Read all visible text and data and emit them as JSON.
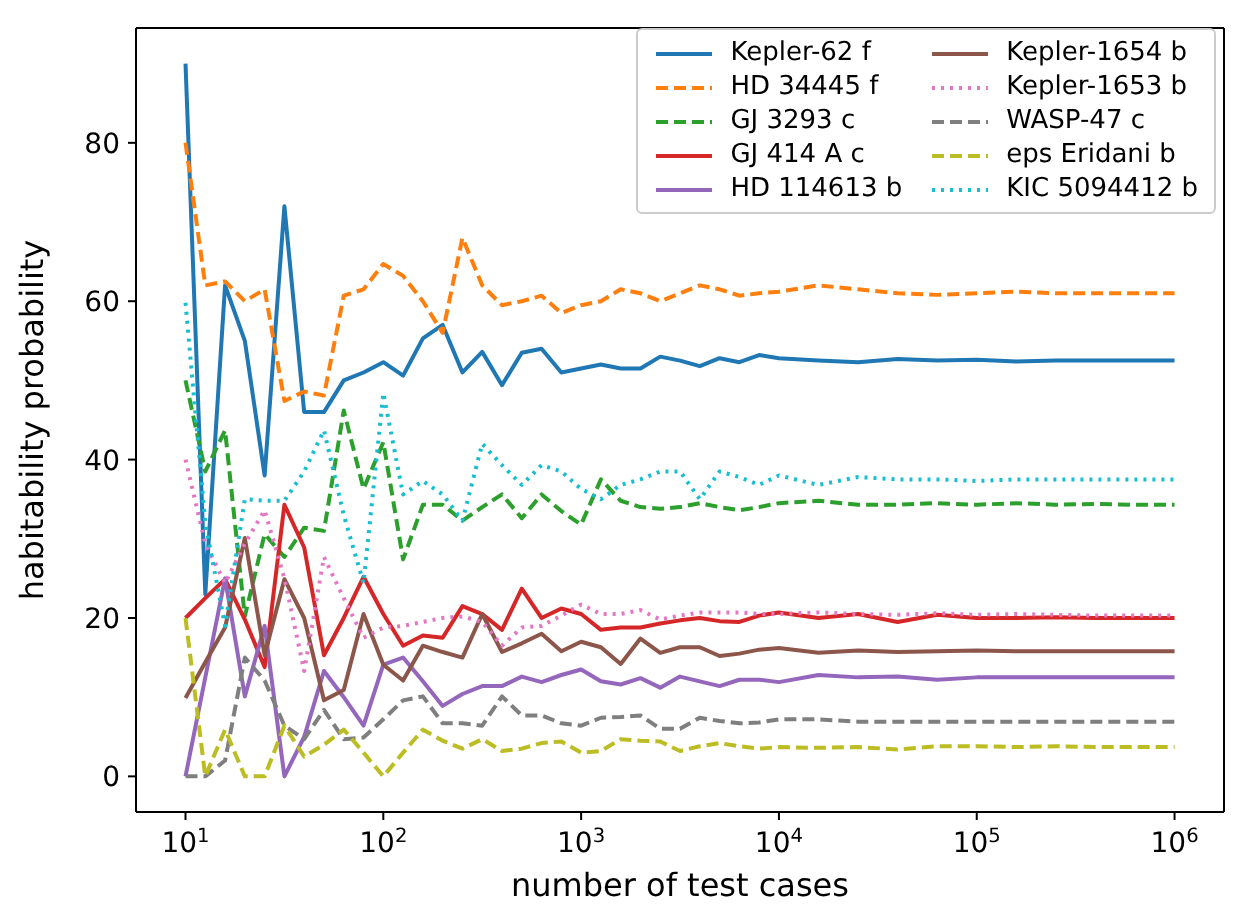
{
  "chart_data": {
    "type": "line",
    "xlabel": "number of test cases",
    "ylabel": "habitability probability",
    "log": "x",
    "legend": "top right",
    "x": [
      10,
      12.59,
      15.85,
      19.95,
      25.12,
      31.62,
      39.81,
      50.12,
      63.1,
      79.43,
      100,
      125.9,
      158.5,
      199.5,
      251.2,
      316.2,
      398.1,
      501.2,
      631,
      794.3,
      1000,
      1259,
      1585,
      1995,
      2512,
      3162,
      3981,
      5012,
      6310,
      7943,
      10000,
      15849,
      25119,
      39811,
      63096,
      100000,
      158489,
      251189,
      398107,
      630957,
      1000000
    ],
    "xlim": [
      5.62,
      1778279
    ],
    "xticks": [
      {
        "value": 10,
        "label": "10$^{1}$"
      },
      {
        "value": 100,
        "label": "10$^{2}$"
      },
      {
        "value": 1000,
        "label": "10$^{3}$"
      },
      {
        "value": 10000,
        "label": "10$^{4}$"
      },
      {
        "value": 100000,
        "label": "10$^{5}$"
      },
      {
        "value": 1000000,
        "label": "10$^{6}$"
      }
    ],
    "ylim": [
      -4.5,
      94.5
    ],
    "yticks": [
      0,
      20,
      40,
      60,
      80
    ],
    "series": [
      {
        "name": "Kepler-62 f",
        "color": "#1f77b4",
        "line_style": "solid",
        "values": [
          90,
          23,
          62,
          55,
          38,
          72,
          46,
          46,
          50,
          51,
          52.3,
          50.6,
          55.3,
          57,
          51,
          53.6,
          49.4,
          53.5,
          54,
          51,
          51.5,
          52,
          51.5,
          51.5,
          53,
          52.5,
          51.8,
          52.8,
          52.3,
          53.2,
          52.8,
          52.5,
          52.3,
          52.7,
          52.5,
          52.6,
          52.4,
          52.5,
          52.5,
          52.5,
          52.5
        ]
      },
      {
        "name": "HD 34445 f",
        "color": "#ff7f0e",
        "line_style": "dashed",
        "values": [
          80,
          62,
          62.5,
          60,
          61.5,
          47.4,
          48.6,
          48.1,
          60.7,
          61.5,
          64.7,
          63.2,
          60,
          56,
          68,
          62,
          59.5,
          60,
          60.7,
          58.5,
          59.5,
          60,
          61.5,
          61,
          60,
          61,
          62,
          61.5,
          60.7,
          61,
          61.2,
          62,
          61.5,
          61,
          60.8,
          61,
          61.2,
          61,
          61,
          61,
          61
        ]
      },
      {
        "name": "GJ 3293 c",
        "color": "#2ca02c",
        "line_style": "dashed",
        "values": [
          50,
          38.5,
          43.7,
          20.2,
          30.6,
          27.7,
          31.4,
          31,
          46.2,
          36.3,
          42.2,
          27.4,
          34.3,
          34.3,
          32.3,
          34,
          35.6,
          32.6,
          35.6,
          33.5,
          31.8,
          37.5,
          34.8,
          34,
          33.8,
          34,
          34.5,
          34,
          33.6,
          34,
          34.5,
          34.8,
          34.3,
          34.3,
          34.5,
          34.3,
          34.5,
          34.3,
          34.4,
          34.3,
          34.3
        ]
      },
      {
        "name": "GJ 414 A c",
        "color": "#d62728",
        "line_style": "solid",
        "values": [
          20,
          22.5,
          24.9,
          19.8,
          13.8,
          34.3,
          28.9,
          15.3,
          20,
          25.2,
          20.5,
          16.5,
          17.8,
          17.5,
          21.5,
          20.5,
          18.5,
          23.7,
          20,
          21.2,
          20.5,
          18.5,
          18.8,
          18.8,
          19.3,
          19.7,
          20,
          19.6,
          19.5,
          20.3,
          20.7,
          20,
          20.5,
          19.5,
          20.4,
          20,
          20,
          20.1,
          20,
          20,
          20
        ]
      },
      {
        "name": "HD 114613 b",
        "color": "#9467bd",
        "line_style": "solid",
        "values": [
          0,
          12.5,
          25,
          10.1,
          19,
          0,
          5,
          13.3,
          10,
          6.4,
          14.1,
          15,
          12,
          8.9,
          10.4,
          11.4,
          11.4,
          12.6,
          11.9,
          12.8,
          13.5,
          12,
          11.6,
          12.4,
          11.2,
          12.6,
          12,
          11.4,
          12.2,
          12.2,
          11.9,
          12.8,
          12.5,
          12.6,
          12.2,
          12.5,
          12.5,
          12.5,
          12.5,
          12.5,
          12.5
        ]
      },
      {
        "name": "Kepler-1654 b",
        "color": "#8c564b",
        "line_style": "solid",
        "values": [
          9.9,
          14.4,
          18.8,
          30.1,
          15.3,
          24.9,
          20,
          9.6,
          10.9,
          20.5,
          14.1,
          12.1,
          16.5,
          15.7,
          15,
          20.5,
          15.7,
          16.8,
          18,
          15.8,
          17,
          16.3,
          14.2,
          17.4,
          15.6,
          16.3,
          16.3,
          15.2,
          15.5,
          16,
          16.2,
          15.6,
          15.9,
          15.7,
          15.8,
          15.9,
          15.8,
          15.8,
          15.8,
          15.8,
          15.8
        ]
      },
      {
        "name": "Kepler-1653 b",
        "color": "#e377c2",
        "line_style": "dotted",
        "values": [
          40,
          29.4,
          24.4,
          29.4,
          33.6,
          25,
          13.3,
          27.7,
          22.5,
          17.5,
          18.8,
          19,
          19.5,
          20,
          20.2,
          19.5,
          16.5,
          18.8,
          19,
          20.3,
          21.7,
          20.5,
          20.5,
          21,
          19.8,
          20.3,
          20.7,
          20.7,
          20.7,
          20.5,
          20.5,
          20.7,
          20.5,
          20.4,
          20.6,
          20.4,
          20.5,
          20.4,
          20.3,
          20.3,
          20.3
        ]
      },
      {
        "name": "WASP-47 c",
        "color": "#7f7f7f",
        "line_style": "dashed",
        "values": [
          0,
          0,
          2,
          15,
          12.1,
          6.4,
          4.7,
          8.4,
          4.7,
          4.9,
          7.2,
          9.6,
          10.1,
          6.7,
          6.7,
          6.4,
          10.1,
          7.7,
          7.7,
          6.7,
          6.4,
          7.4,
          7.5,
          7.7,
          6,
          6,
          7.4,
          7,
          6.7,
          6.8,
          7.2,
          7.2,
          6.9,
          6.9,
          6.9,
          6.9,
          6.9,
          6.9,
          6.9,
          6.9,
          6.9
        ]
      },
      {
        "name": "eps Eridani b",
        "color": "#bcbd22",
        "line_style": "dashed",
        "values": [
          20,
          0,
          5.9,
          0,
          0,
          6.4,
          2.5,
          4,
          5.9,
          3,
          0,
          3,
          5.9,
          4.5,
          3.5,
          4.7,
          3.2,
          3.5,
          4.2,
          4.4,
          3,
          3.2,
          4.7,
          4.5,
          4.4,
          3.2,
          3.8,
          4.2,
          3.8,
          3.5,
          3.7,
          3.6,
          3.7,
          3.4,
          3.8,
          3.8,
          3.7,
          3.8,
          3.7,
          3.7,
          3.7
        ]
      },
      {
        "name": "KIC 5094412 b",
        "color": "#17becf",
        "line_style": "dotted",
        "values": [
          59.8,
          32,
          19,
          35,
          34.8,
          34.8,
          38.5,
          43.7,
          33,
          24.4,
          48.4,
          35.6,
          37.3,
          35.6,
          32.3,
          42,
          39.3,
          36.8,
          39.3,
          38.5,
          36.3,
          35,
          36.8,
          37.5,
          38.5,
          38.5,
          35,
          38.5,
          37.8,
          36.8,
          38,
          36.8,
          37.8,
          37.5,
          37.5,
          37.3,
          37.5,
          37.5,
          37.5,
          37.5,
          37.5
        ]
      }
    ]
  }
}
